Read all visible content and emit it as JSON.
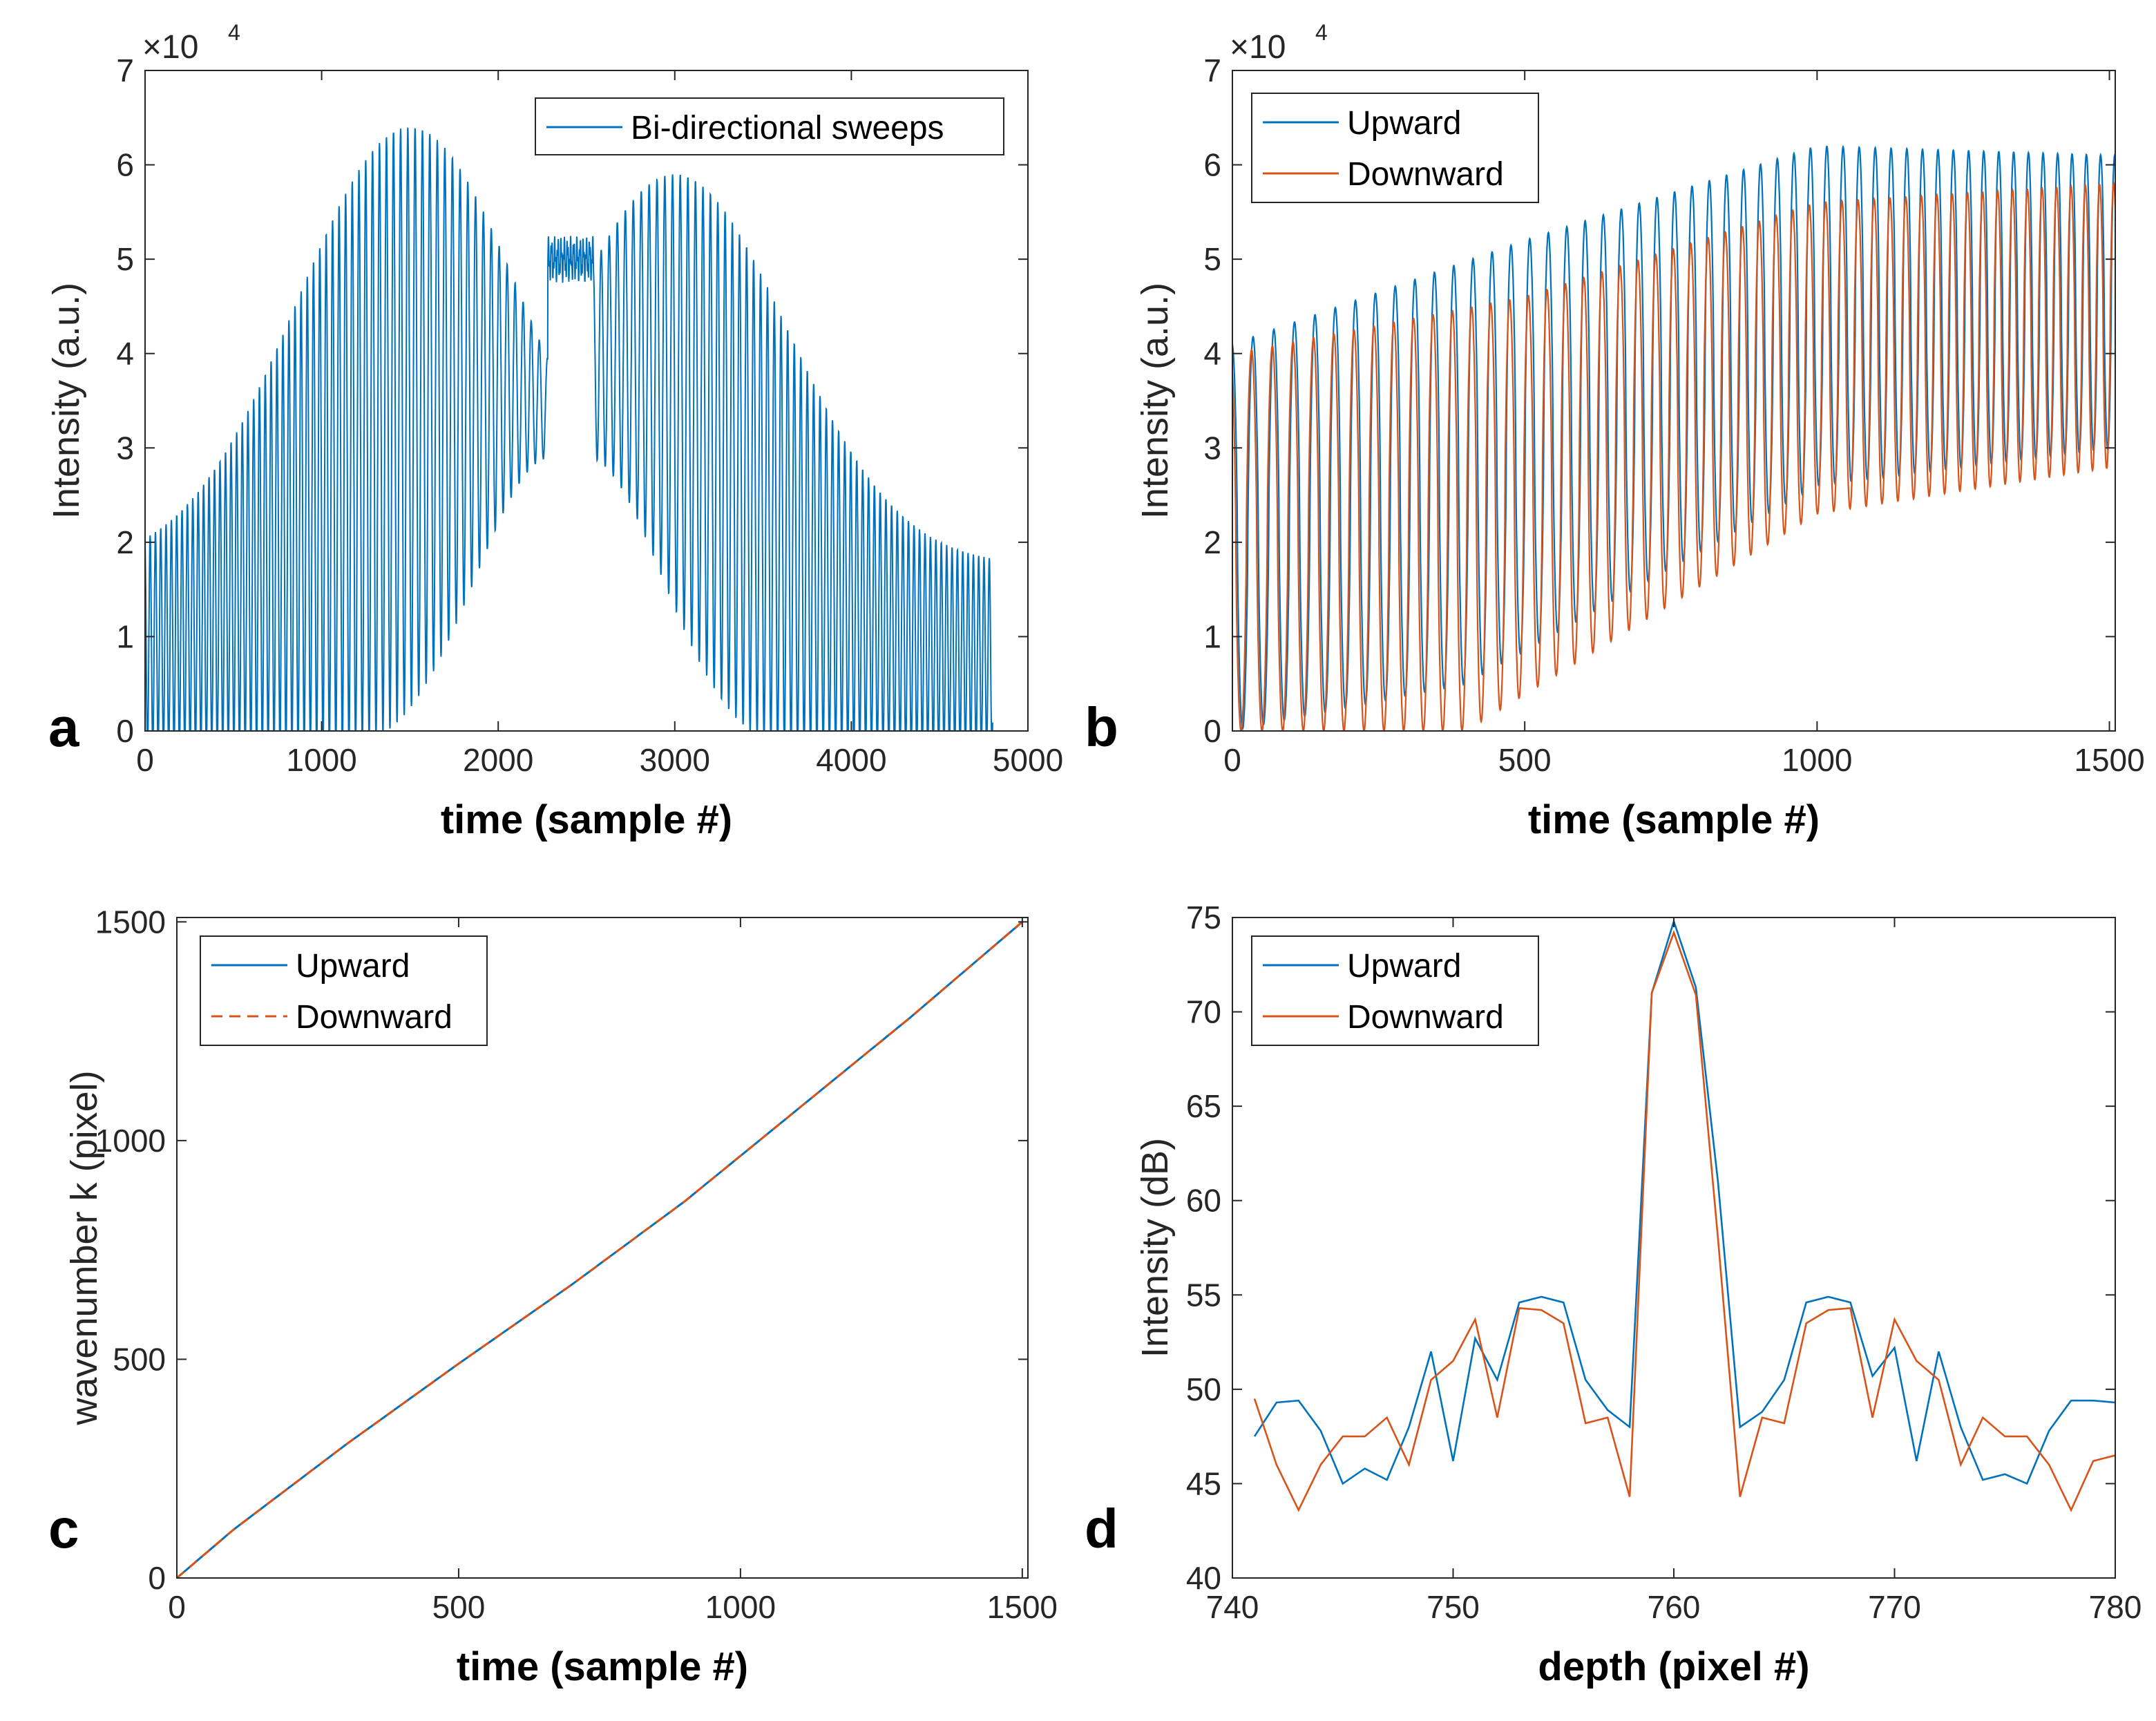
{
  "colors": {
    "blue": "#0072BD",
    "orange": "#D95319",
    "axis": "#262626"
  },
  "chart_data": [
    {
      "panel": "a",
      "type": "line",
      "xlabel": "time (sample #)",
      "ylabel": "Intensity (a.u.)",
      "exponent": "×10",
      "exponent_power": "4",
      "xlim": [
        0,
        5000
      ],
      "ylim": [
        0,
        7
      ],
      "xticks": [
        0,
        1000,
        2000,
        3000,
        4000,
        5000
      ],
      "yticks": [
        0,
        1,
        2,
        3,
        4,
        5,
        6,
        7
      ],
      "legend_position": "top-right",
      "series": [
        {
          "name": "Bi-directional sweeps",
          "color": "#0072BD",
          "style": "solid",
          "description": "oscillating interference fringes; two bell-shaped envelopes with a flat ~5 plateau near sample 2300-2500",
          "x_range": [
            0,
            4800
          ],
          "upper_envelope_peak": 6.4,
          "plateau": 5.0
        }
      ]
    },
    {
      "panel": "b",
      "type": "line",
      "xlabel": "time (sample #)",
      "ylabel": "Intensity (a.u.)",
      "exponent": "×10",
      "exponent_power": "4",
      "xlim": [
        0,
        1510
      ],
      "ylim": [
        0,
        7
      ],
      "xticks": [
        0,
        500,
        1000,
        1500
      ],
      "yticks": [
        0,
        1,
        2,
        3,
        4,
        5,
        6,
        7
      ],
      "legend_position": "top-left",
      "series": [
        {
          "name": "Upward",
          "color": "#0072BD",
          "style": "solid",
          "upper_envelope": [
            [
              0,
              4.1
            ],
            [
              500,
              5.2
            ],
            [
              1000,
              6.2
            ],
            [
              1510,
              6.1
            ]
          ],
          "lower_envelope": [
            [
              0,
              0.0
            ],
            [
              400,
              0.5
            ],
            [
              1000,
              2.6
            ],
            [
              1510,
              3.0
            ]
          ]
        },
        {
          "name": "Downward",
          "color": "#D95319",
          "style": "solid",
          "upper_envelope": [
            [
              0,
              4.0
            ],
            [
              500,
              4.6
            ],
            [
              1000,
              5.6
            ],
            [
              1510,
              5.8
            ]
          ],
          "lower_envelope": [
            [
              0,
              0.0
            ],
            [
              400,
              0.0
            ],
            [
              1000,
              2.3
            ],
            [
              1510,
              2.8
            ]
          ]
        }
      ]
    },
    {
      "panel": "c",
      "type": "line",
      "xlabel": "time (sample #)",
      "ylabel": "wavenumber k (pixel)",
      "xlim": [
        0,
        1510
      ],
      "ylim": [
        0,
        1510
      ],
      "xticks": [
        0,
        500,
        1000,
        1500
      ],
      "yticks": [
        0,
        500,
        1000,
        1500
      ],
      "legend_position": "top-left",
      "curve": [
        [
          0,
          0
        ],
        [
          100,
          110
        ],
        [
          300,
          305
        ],
        [
          500,
          490
        ],
        [
          700,
          670
        ],
        [
          900,
          860
        ],
        [
          1100,
          1070
        ],
        [
          1300,
          1280
        ],
        [
          1500,
          1500
        ]
      ],
      "series": [
        {
          "name": "Upward",
          "color": "#0072BD",
          "style": "solid"
        },
        {
          "name": "Downward",
          "color": "#D95319",
          "style": "dashed"
        }
      ]
    },
    {
      "panel": "d",
      "type": "line",
      "xlabel": "depth (pixel #)",
      "ylabel": "Intensity (dB)",
      "xlim": [
        740,
        780
      ],
      "ylim": [
        40,
        75
      ],
      "xticks": [
        740,
        750,
        760,
        770,
        780
      ],
      "yticks": [
        40,
        45,
        50,
        55,
        60,
        65,
        70,
        75
      ],
      "legend_position": "top-left",
      "x": [
        741,
        742,
        743,
        744,
        745,
        746,
        747,
        748,
        749,
        750,
        751,
        752,
        753,
        754,
        755,
        756,
        757,
        758,
        759,
        760,
        761,
        762,
        763,
        764,
        765,
        766,
        767,
        768,
        769,
        770,
        771,
        772,
        773,
        774,
        775,
        776,
        777,
        778,
        779,
        780
      ],
      "series": [
        {
          "name": "Upward",
          "color": "#0072BD",
          "style": "solid",
          "values": [
            47.5,
            49.3,
            49.4,
            47.8,
            45.0,
            45.8,
            45.2,
            48.0,
            52.0,
            46.2,
            52.7,
            50.5,
            54.6,
            54.9,
            54.6,
            50.5,
            48.9,
            48.0,
            71.0,
            74.8,
            71.3,
            61.0,
            48.0,
            48.8,
            50.5,
            54.6,
            54.9,
            54.6,
            50.7,
            52.2,
            46.2,
            52.0,
            48.0,
            45.2,
            45.5,
            45.0,
            47.8,
            49.4,
            49.4,
            49.3
          ]
        },
        {
          "name": "Downward",
          "color": "#D95319",
          "style": "solid",
          "values": [
            49.5,
            46.0,
            43.6,
            46.0,
            47.5,
            47.5,
            48.5,
            46.0,
            50.5,
            51.5,
            53.7,
            48.5,
            54.3,
            54.2,
            53.5,
            48.2,
            48.5,
            44.3,
            71.0,
            74.2,
            70.9,
            58.0,
            44.3,
            48.5,
            48.2,
            53.5,
            54.2,
            54.3,
            48.5,
            53.7,
            51.5,
            50.5,
            46.0,
            48.5,
            47.5,
            47.5,
            46.0,
            43.6,
            46.2,
            46.5
          ]
        }
      ]
    }
  ]
}
